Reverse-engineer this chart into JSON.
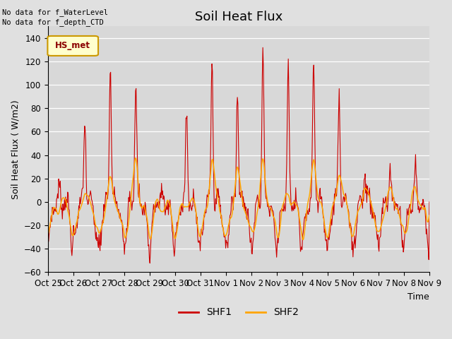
{
  "title": "Soil Heat Flux",
  "ylabel": "Soil Heat Flux ( W/m2)",
  "xlabel": "Time",
  "ylim": [
    -60,
    150
  ],
  "yticks": [
    -60,
    -40,
    -20,
    0,
    20,
    40,
    60,
    80,
    100,
    120,
    140
  ],
  "xtick_labels": [
    "Oct 25",
    "Oct 26",
    "Oct 27",
    "Oct 28",
    "Oct 29",
    "Oct 30",
    "Oct 31",
    "Nov 1",
    "Nov 2",
    "Nov 3",
    "Nov 4",
    "Nov 5",
    "Nov 6",
    "Nov 7",
    "Nov 8",
    "Nov 9"
  ],
  "top_left_text1": "No data for f_WaterLevel",
  "top_left_text2": "No data for f_depth_CTD",
  "box_label": "HS_met",
  "legend_entries": [
    "SHF1",
    "SHF2"
  ],
  "shf1_color": "#CC0000",
  "shf2_color": "#FFA500",
  "bg_color": "#E0E0E0",
  "plot_bg_color": "#D8D8D8",
  "grid_color": "#FFFFFF",
  "title_fontsize": 13,
  "axis_fontsize": 9,
  "tick_fontsize": 8.5
}
